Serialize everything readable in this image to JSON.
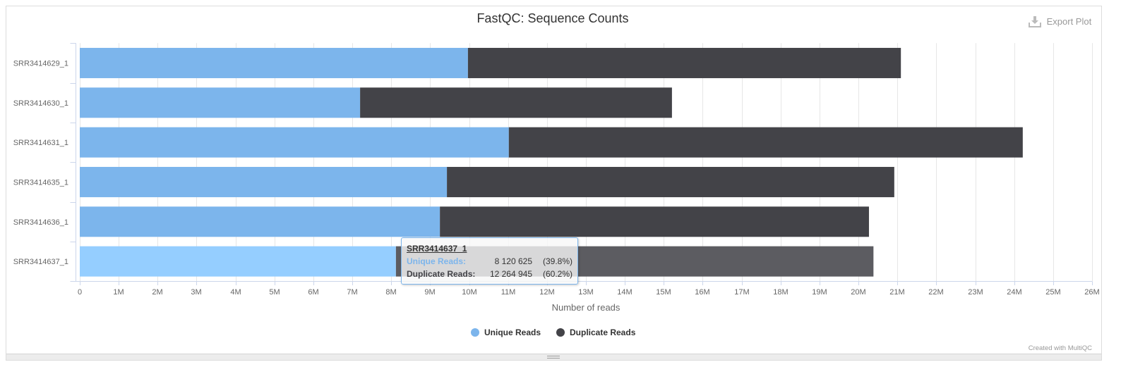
{
  "chart_data": {
    "type": "bar",
    "stacked": true,
    "title": "FastQC: Sequence Counts",
    "xlabel": "Number of reads",
    "xlim": [
      0,
      26000000
    ],
    "x_tick_labels": [
      "0",
      "1M",
      "2M",
      "3M",
      "4M",
      "5M",
      "6M",
      "7M",
      "8M",
      "9M",
      "10M",
      "11M",
      "12M",
      "13M",
      "14M",
      "15M",
      "16M",
      "17M",
      "18M",
      "19M",
      "20M",
      "21M",
      "22M",
      "23M",
      "24M",
      "25M",
      "26M"
    ],
    "grid": true,
    "legend": "bottom",
    "categories": [
      "SRR3414629_1",
      "SRR3414630_1",
      "SRR3414631_1",
      "SRR3414635_1",
      "SRR3414636_1",
      "SRR3414637_1"
    ],
    "series": [
      {
        "name": "Unique Reads",
        "color": "#7cb5ec",
        "hover_color": "#95ceff",
        "values": [
          9970000,
          7200000,
          11020000,
          9430000,
          9250000,
          8120625
        ]
      },
      {
        "name": "Duplicate Reads",
        "color": "#434348",
        "hover_color": "#5c5c61",
        "values": [
          11120000,
          8010000,
          13200000,
          11490000,
          11020000,
          12264945
        ]
      }
    ]
  },
  "export": {
    "label": "Export Plot",
    "icon": "download-icon"
  },
  "tooltip": {
    "title": "SRR3414637_1",
    "rows": [
      {
        "label": "Unique Reads:",
        "value": "8 120 625",
        "percent": "(39.8%)"
      },
      {
        "label": "Duplicate Reads:",
        "value": "12 264 945",
        "percent": "(60.2%)"
      }
    ]
  },
  "credit": "Created with MultiQC",
  "resize_handle": {
    "icon": "grip-icon"
  }
}
